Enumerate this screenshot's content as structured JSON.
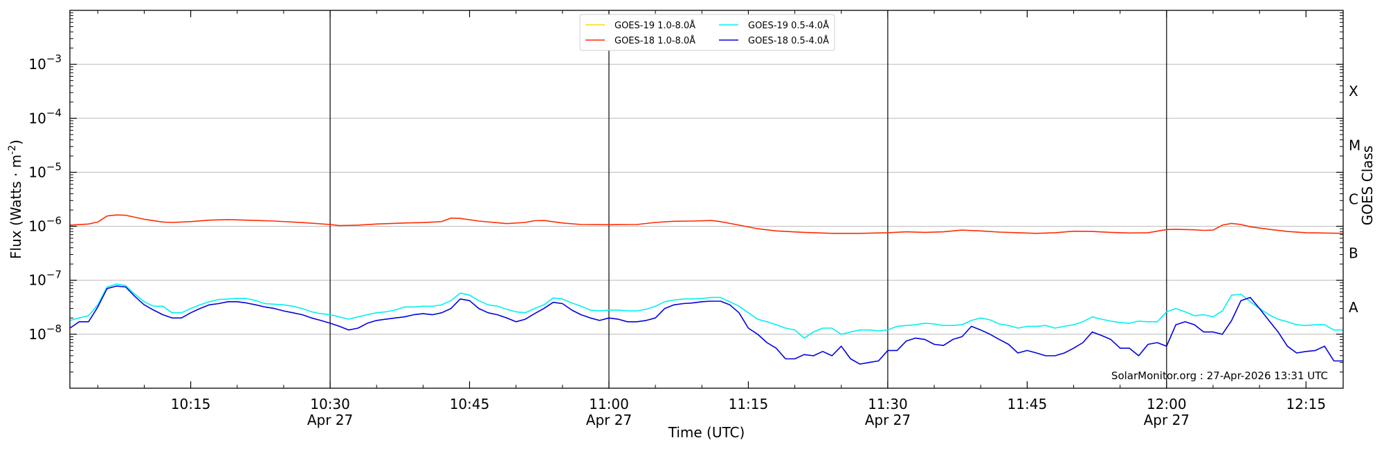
{
  "chart_data": {
    "type": "line",
    "xlabel": "Time (UTC)",
    "ylabel": "Flux (Watts · m",
    "ylabel_sup": "-2",
    "right_label": "GOES Class",
    "credit": "SolarMonitor.org : 27-Apr-2026 13:31 UTC",
    "x_range": [
      "10:02",
      "12:19"
    ],
    "y_scale": "log",
    "ylim": [
      1e-09,
      0.01
    ],
    "y_ticks": [
      {
        "value": 1e-08,
        "base": "10",
        "exp": "−8"
      },
      {
        "value": 1e-07,
        "base": "10",
        "exp": "−7"
      },
      {
        "value": 1e-06,
        "base": "10",
        "exp": "−6"
      },
      {
        "value": 1e-05,
        "base": "10",
        "exp": "−5"
      },
      {
        "value": 0.0001,
        "base": "10",
        "exp": "−4"
      },
      {
        "value": 0.001,
        "base": "10",
        "exp": "−3"
      }
    ],
    "x_ticks": [
      {
        "time": "10:15",
        "label": "10:15",
        "date": ""
      },
      {
        "time": "10:30",
        "label": "10:30",
        "date": "Apr 27"
      },
      {
        "time": "10:45",
        "label": "10:45",
        "date": ""
      },
      {
        "time": "11:00",
        "label": "11:00",
        "date": "Apr 27"
      },
      {
        "time": "11:15",
        "label": "11:15",
        "date": ""
      },
      {
        "time": "11:30",
        "label": "11:30",
        "date": "Apr 27"
      },
      {
        "time": "11:45",
        "label": "11:45",
        "date": ""
      },
      {
        "time": "12:00",
        "label": "12:00",
        "date": "Apr 27"
      },
      {
        "time": "12:15",
        "label": "12:15",
        "date": ""
      }
    ],
    "vertical_lines": [
      "10:30",
      "11:00",
      "11:30",
      "12:00"
    ],
    "goes_classes": [
      {
        "label": "A",
        "value": 3.16e-08
      },
      {
        "label": "B",
        "value": 3.16e-07
      },
      {
        "label": "C",
        "value": 3.16e-06
      },
      {
        "label": "M",
        "value": 3.16e-05
      },
      {
        "label": "X",
        "value": 0.000316
      }
    ],
    "legend": {
      "placement": "top-center",
      "entries": [
        {
          "name": "GOES-19 1.0-8.0Å",
          "color": "#ffd700"
        },
        {
          "name": "GOES-18 1.0-8.0Å",
          "color": "#ff2a00"
        },
        {
          "name": "GOES-19 0.5-4.0Å",
          "color": "#00f0f0"
        },
        {
          "name": "GOES-18 0.5-4.0Å",
          "color": "#0000dd"
        }
      ]
    },
    "series": [
      {
        "name": "GOES-18 1.0-8.0Å",
        "color": "#ff2a00",
        "x": [
          "10:02",
          "10:04",
          "10:05",
          "10:06",
          "10:07",
          "10:08",
          "10:10",
          "10:12",
          "10:13",
          "10:15",
          "10:17",
          "10:19",
          "10:21",
          "10:24",
          "10:27",
          "10:30",
          "10:31",
          "10:33",
          "10:35",
          "10:38",
          "10:40",
          "10:42",
          "10:43",
          "10:44",
          "10:46",
          "10:49",
          "10:51",
          "10:52",
          "10:53",
          "10:55",
          "10:57",
          "11:00",
          "11:03",
          "11:05",
          "11:07",
          "11:09",
          "11:11",
          "11:12",
          "11:14",
          "11:16",
          "11:18",
          "11:21",
          "11:24",
          "11:27",
          "11:30",
          "11:32",
          "11:34",
          "11:36",
          "11:38",
          "11:40",
          "11:42",
          "11:44",
          "11:46",
          "11:48",
          "11:50",
          "11:52",
          "11:54",
          "11:56",
          "11:58",
          "12:00",
          "12:01",
          "12:03",
          "12:04",
          "12:05",
          "12:06",
          "12:07",
          "12:08",
          "12:09",
          "12:11",
          "12:13",
          "12:15",
          "12:19"
        ],
        "y": [
          1.05e-06,
          1.1e-06,
          1.2e-06,
          1.55e-06,
          1.62e-06,
          1.6e-06,
          1.35e-06,
          1.2e-06,
          1.18e-06,
          1.22e-06,
          1.3e-06,
          1.33e-06,
          1.3e-06,
          1.25e-06,
          1.17e-06,
          1.08e-06,
          1.03e-06,
          1.05e-06,
          1.1e-06,
          1.15e-06,
          1.17e-06,
          1.22e-06,
          1.42e-06,
          1.4e-06,
          1.25e-06,
          1.12e-06,
          1.18e-06,
          1.27e-06,
          1.28e-06,
          1.15e-06,
          1.08e-06,
          1.07e-06,
          1.08e-06,
          1.18e-06,
          1.24e-06,
          1.25e-06,
          1.28e-06,
          1.22e-06,
          1.05e-06,
          9e-07,
          8.2e-07,
          7.7e-07,
          7.4e-07,
          7.4e-07,
          7.6e-07,
          7.9e-07,
          7.7e-07,
          7.9e-07,
          8.5e-07,
          8.2e-07,
          7.8e-07,
          7.6e-07,
          7.4e-07,
          7.6e-07,
          8.1e-07,
          8e-07,
          7.7e-07,
          7.5e-07,
          7.6e-07,
          8.7e-07,
          8.8e-07,
          8.6e-07,
          8.4e-07,
          8.5e-07,
          1.05e-06,
          1.13e-06,
          1.08e-06,
          9.8e-07,
          8.8e-07,
          8e-07,
          7.6e-07,
          7.4e-07
        ]
      },
      {
        "name": "GOES-19 0.5-4.0Å",
        "color": "#00f0f0",
        "x": [
          "10:02",
          "10:03",
          "10:04",
          "10:05",
          "10:06",
          "10:07",
          "10:08",
          "10:09",
          "10:10",
          "10:11",
          "10:12",
          "10:13",
          "10:14",
          "10:15",
          "10:16",
          "10:17",
          "10:18",
          "10:19",
          "10:20",
          "10:21",
          "10:22",
          "10:23",
          "10:24",
          "10:25",
          "10:26",
          "10:27",
          "10:28",
          "10:29",
          "10:30",
          "10:31",
          "10:32",
          "10:33",
          "10:34",
          "10:35",
          "10:36",
          "10:37",
          "10:38",
          "10:39",
          "10:40",
          "10:41",
          "10:42",
          "10:43",
          "10:44",
          "10:45",
          "10:46",
          "10:47",
          "10:48",
          "10:49",
          "10:50",
          "10:51",
          "10:52",
          "10:53",
          "10:54",
          "10:55",
          "10:56",
          "10:57",
          "10:58",
          "10:59",
          "11:00",
          "11:01",
          "11:02",
          "11:03",
          "11:04",
          "11:05",
          "11:06",
          "11:07",
          "11:08",
          "11:09",
          "11:10",
          "11:11",
          "11:12",
          "11:13",
          "11:14",
          "11:15",
          "11:16",
          "11:17",
          "11:18",
          "11:19",
          "11:20",
          "11:21",
          "11:22",
          "11:23",
          "11:24",
          "11:25",
          "11:26",
          "11:27",
          "11:28",
          "11:29",
          "11:30",
          "11:31",
          "11:32",
          "11:33",
          "11:34",
          "11:35",
          "11:36",
          "11:37",
          "11:38",
          "11:39",
          "11:40",
          "11:41",
          "11:42",
          "11:43",
          "11:44",
          "11:45",
          "11:46",
          "11:47",
          "11:48",
          "11:49",
          "11:50",
          "11:51",
          "11:52",
          "11:53",
          "11:54",
          "11:55",
          "11:56",
          "11:57",
          "11:58",
          "11:59",
          "12:00",
          "12:01",
          "12:02",
          "12:03",
          "12:04",
          "12:05",
          "12:06",
          "12:07",
          "12:08",
          "12:09",
          "12:10",
          "12:11",
          "12:12",
          "12:13",
          "12:14",
          "12:15",
          "12:16",
          "12:17",
          "12:18",
          "12:19"
        ],
        "y": [
          1.8e-08,
          2e-08,
          2.2e-08,
          3.5e-08,
          7.5e-08,
          8.5e-08,
          8e-08,
          5.5e-08,
          4e-08,
          3.3e-08,
          3.3e-08,
          2.5e-08,
          2.5e-08,
          3e-08,
          3.5e-08,
          4e-08,
          4.4e-08,
          4.5e-08,
          4.6e-08,
          4.6e-08,
          4.2e-08,
          3.7e-08,
          3.6e-08,
          3.5e-08,
          3.3e-08,
          3e-08,
          2.6e-08,
          2.4e-08,
          2.3e-08,
          2.1e-08,
          1.9e-08,
          2.1e-08,
          2.3e-08,
          2.5e-08,
          2.6e-08,
          2.8e-08,
          3.2e-08,
          3.2e-08,
          3.3e-08,
          3.3e-08,
          3.5e-08,
          4.2e-08,
          5.8e-08,
          5.3e-08,
          4.2e-08,
          3.5e-08,
          3.3e-08,
          2.9e-08,
          2.6e-08,
          2.5e-08,
          3e-08,
          3.5e-08,
          4.7e-08,
          4.5e-08,
          3.8e-08,
          3.3e-08,
          2.8e-08,
          2.7e-08,
          2.8e-08,
          2.8e-08,
          2.7e-08,
          2.7e-08,
          2.9e-08,
          3.3e-08,
          4e-08,
          4.3e-08,
          4.5e-08,
          4.5e-08,
          4.6e-08,
          4.8e-08,
          4.8e-08,
          4e-08,
          3.3e-08,
          2.5e-08,
          1.9e-08,
          1.7e-08,
          1.5e-08,
          1.3e-08,
          1.2e-08,
          8.5e-09,
          1.1e-08,
          1.3e-08,
          1.3e-08,
          1e-08,
          1.1e-08,
          1.2e-08,
          1.2e-08,
          1.15e-08,
          1.2e-08,
          1.4e-08,
          1.45e-08,
          1.5e-08,
          1.6e-08,
          1.55e-08,
          1.45e-08,
          1.45e-08,
          1.5e-08,
          1.8e-08,
          2e-08,
          1.85e-08,
          1.55e-08,
          1.45e-08,
          1.3e-08,
          1.4e-08,
          1.4e-08,
          1.45e-08,
          1.3e-08,
          1.4e-08,
          1.5e-08,
          1.7e-08,
          2.1e-08,
          1.9e-08,
          1.75e-08,
          1.65e-08,
          1.6e-08,
          1.75e-08,
          1.7e-08,
          1.7e-08,
          2.6e-08,
          3e-08,
          2.6e-08,
          2.2e-08,
          2.3e-08,
          2.1e-08,
          2.7e-08,
          5.3e-08,
          5.5e-08,
          4e-08,
          3e-08,
          2.3e-08,
          1.9e-08,
          1.7e-08,
          1.5e-08,
          1.45e-08,
          1.5e-08,
          1.5e-08,
          1.2e-08,
          1.2e-08
        ]
      },
      {
        "name": "GOES-18 0.5-4.0Å",
        "color": "#0000dd",
        "x": [
          "10:02",
          "10:03",
          "10:04",
          "10:05",
          "10:06",
          "10:07",
          "10:08",
          "10:09",
          "10:10",
          "10:11",
          "10:12",
          "10:13",
          "10:14",
          "10:15",
          "10:16",
          "10:17",
          "10:18",
          "10:19",
          "10:20",
          "10:21",
          "10:22",
          "10:23",
          "10:24",
          "10:25",
          "10:26",
          "10:27",
          "10:28",
          "10:29",
          "10:30",
          "10:31",
          "10:32",
          "10:33",
          "10:34",
          "10:35",
          "10:36",
          "10:37",
          "10:38",
          "10:39",
          "10:40",
          "10:41",
          "10:42",
          "10:43",
          "10:44",
          "10:45",
          "10:46",
          "10:47",
          "10:48",
          "10:49",
          "10:50",
          "10:51",
          "10:52",
          "10:53",
          "10:54",
          "10:55",
          "10:56",
          "10:57",
          "10:58",
          "10:59",
          "11:00",
          "11:01",
          "11:02",
          "11:03",
          "11:04",
          "11:05",
          "11:06",
          "11:07",
          "11:08",
          "11:09",
          "11:10",
          "11:11",
          "11:12",
          "11:13",
          "11:14",
          "11:15",
          "11:16",
          "11:17",
          "11:18",
          "11:19",
          "11:20",
          "11:21",
          "11:22",
          "11:23",
          "11:24",
          "11:25",
          "11:26",
          "11:27",
          "11:28",
          "11:29",
          "11:30",
          "11:31",
          "11:32",
          "11:33",
          "11:34",
          "11:35",
          "11:36",
          "11:37",
          "11:38",
          "11:39",
          "11:40",
          "11:41",
          "11:42",
          "11:43",
          "11:44",
          "11:45",
          "11:46",
          "11:47",
          "11:48",
          "11:49",
          "11:50",
          "11:51",
          "11:52",
          "11:53",
          "11:54",
          "11:55",
          "11:56",
          "11:57",
          "11:58",
          "11:59",
          "12:00",
          "12:01",
          "12:02",
          "12:03",
          "12:04",
          "12:05",
          "12:06",
          "12:07",
          "12:08",
          "12:09",
          "12:10",
          "12:11",
          "12:12",
          "12:13",
          "12:14",
          "12:15",
          "12:16",
          "12:17",
          "12:18",
          "12:19"
        ],
        "y": [
          1.3e-08,
          1.7e-08,
          1.7e-08,
          3.2e-08,
          7e-08,
          7.8e-08,
          7.5e-08,
          5e-08,
          3.5e-08,
          2.8e-08,
          2.3e-08,
          2e-08,
          2e-08,
          2.5e-08,
          3e-08,
          3.5e-08,
          3.7e-08,
          4e-08,
          4e-08,
          3.8e-08,
          3.5e-08,
          3.2e-08,
          3e-08,
          2.7e-08,
          2.5e-08,
          2.3e-08,
          2e-08,
          1.8e-08,
          1.6e-08,
          1.4e-08,
          1.2e-08,
          1.3e-08,
          1.6e-08,
          1.8e-08,
          1.9e-08,
          2e-08,
          2.1e-08,
          2.3e-08,
          2.4e-08,
          2.3e-08,
          2.5e-08,
          3e-08,
          4.5e-08,
          4.2e-08,
          3e-08,
          2.5e-08,
          2.3e-08,
          2e-08,
          1.7e-08,
          1.9e-08,
          2.4e-08,
          3e-08,
          3.9e-08,
          3.7e-08,
          2.8e-08,
          2.3e-08,
          2e-08,
          1.8e-08,
          2e-08,
          1.9e-08,
          1.7e-08,
          1.7e-08,
          1.8e-08,
          2e-08,
          3e-08,
          3.5e-08,
          3.7e-08,
          3.8e-08,
          4e-08,
          4.1e-08,
          4.1e-08,
          3.5e-08,
          2.5e-08,
          1.3e-08,
          1e-08,
          7e-09,
          5.5e-09,
          3.5e-09,
          3.5e-09,
          4.2e-09,
          4e-09,
          4.8e-09,
          4e-09,
          6e-09,
          3.5e-09,
          2.8e-09,
          3e-09,
          3.2e-09,
          5e-09,
          5e-09,
          7.5e-09,
          8.5e-09,
          8e-09,
          6.5e-09,
          6.2e-09,
          8e-09,
          9e-09,
          1.4e-08,
          1.2e-08,
          1e-08,
          8e-09,
          6.5e-09,
          4.5e-09,
          5e-09,
          4.5e-09,
          4e-09,
          4e-09,
          4.5e-09,
          5.5e-09,
          7e-09,
          1.1e-08,
          9.5e-09,
          8e-09,
          5.5e-09,
          5.5e-09,
          4e-09,
          6.5e-09,
          7e-09,
          6e-09,
          1.5e-08,
          1.7e-08,
          1.5e-08,
          1.1e-08,
          1.1e-08,
          1e-08,
          1.8e-08,
          4.2e-08,
          4.8e-08,
          3e-08,
          1.8e-08,
          1.1e-08,
          6e-09,
          4.5e-09,
          4.8e-09,
          5e-09,
          6e-09,
          3.2e-09,
          3.2e-09
        ]
      }
    ]
  }
}
